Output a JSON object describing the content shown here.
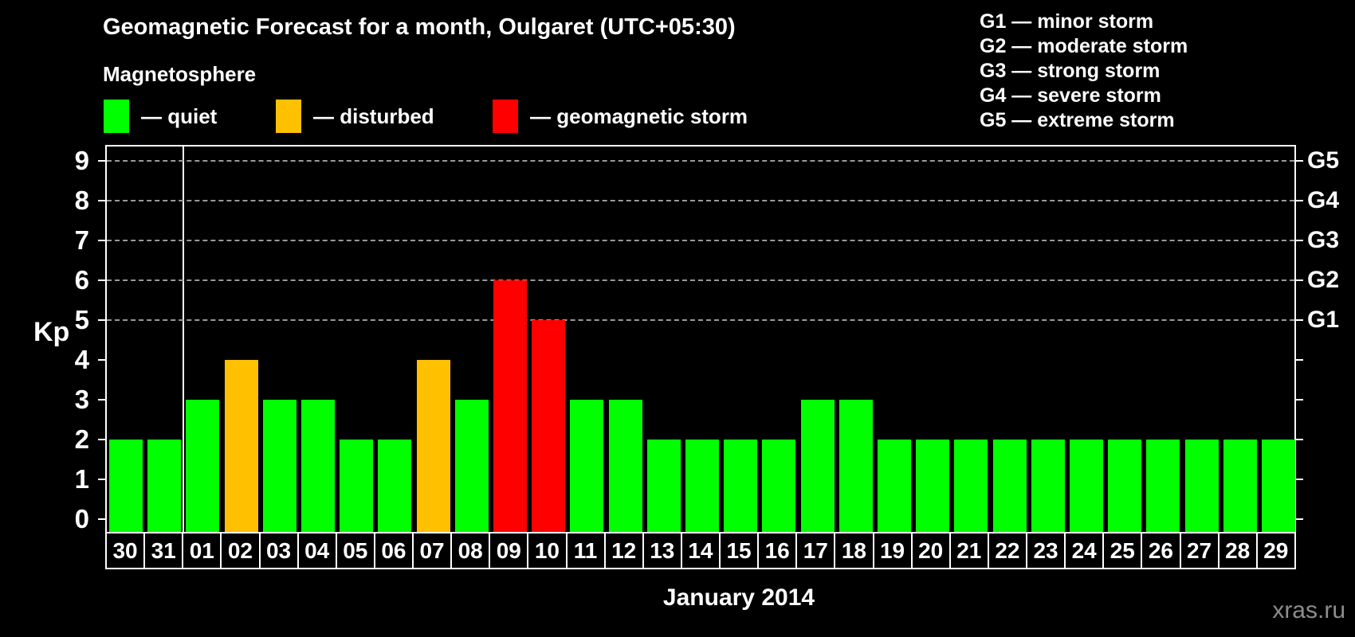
{
  "title": "Geomagnetic Forecast for a month, Oulgaret (UTC+05:30)",
  "subtitle": "Magnetosphere",
  "legend": [
    {
      "name": "quiet",
      "label": "— quiet",
      "color": "#00ff00"
    },
    {
      "name": "disturbed",
      "label": "— disturbed",
      "color": "#ffc000"
    },
    {
      "name": "storm",
      "label": "— geomagnetic storm",
      "color": "#ff0000"
    }
  ],
  "g_legend": [
    "G1 — minor storm",
    "G2 — moderate storm",
    "G3 — strong storm",
    "G4 — severe storm",
    "G5 — extreme storm"
  ],
  "kp_axis_title": "Kp",
  "month_label": "January 2014",
  "watermark": "xras.ru",
  "chart_data": {
    "type": "bar",
    "title": "Geomagnetic Forecast for a month, Oulgaret (UTC+05:30)",
    "xlabel": "January 2014",
    "ylabel": "Kp",
    "ylim": [
      0,
      9.4
    ],
    "yticks": [
      0,
      1,
      2,
      3,
      4,
      5,
      6,
      7,
      8,
      9
    ],
    "grid_dashed_at": [
      5,
      6,
      7,
      8,
      9
    ],
    "right_axis_labels": [
      {
        "kp": 5,
        "label": "G1"
      },
      {
        "kp": 6,
        "label": "G2"
      },
      {
        "kp": 7,
        "label": "G3"
      },
      {
        "kp": 8,
        "label": "G4"
      },
      {
        "kp": 9,
        "label": "G5"
      }
    ],
    "legend_position": "top",
    "categories": [
      "30",
      "31",
      "01",
      "02",
      "03",
      "04",
      "05",
      "06",
      "07",
      "08",
      "09",
      "10",
      "11",
      "12",
      "13",
      "14",
      "15",
      "16",
      "17",
      "18",
      "19",
      "20",
      "21",
      "22",
      "23",
      "24",
      "25",
      "26",
      "27",
      "28",
      "29"
    ],
    "values": [
      2,
      2,
      3,
      4,
      3,
      3,
      2,
      2,
      4,
      3,
      6,
      5,
      3,
      3,
      2,
      2,
      2,
      2,
      3,
      3,
      2,
      2,
      2,
      2,
      2,
      2,
      2,
      2,
      2,
      2,
      2
    ],
    "statuses": [
      "quiet",
      "quiet",
      "quiet",
      "disturbed",
      "quiet",
      "quiet",
      "quiet",
      "quiet",
      "disturbed",
      "quiet",
      "storm",
      "storm",
      "quiet",
      "quiet",
      "quiet",
      "quiet",
      "quiet",
      "quiet",
      "quiet",
      "quiet",
      "quiet",
      "quiet",
      "quiet",
      "quiet",
      "quiet",
      "quiet",
      "quiet",
      "quiet",
      "quiet",
      "quiet",
      "quiet"
    ],
    "status_colors": {
      "quiet": "#00ff00",
      "disturbed": "#ffc000",
      "storm": "#ff0000"
    },
    "month_separator_after_index": 1
  }
}
